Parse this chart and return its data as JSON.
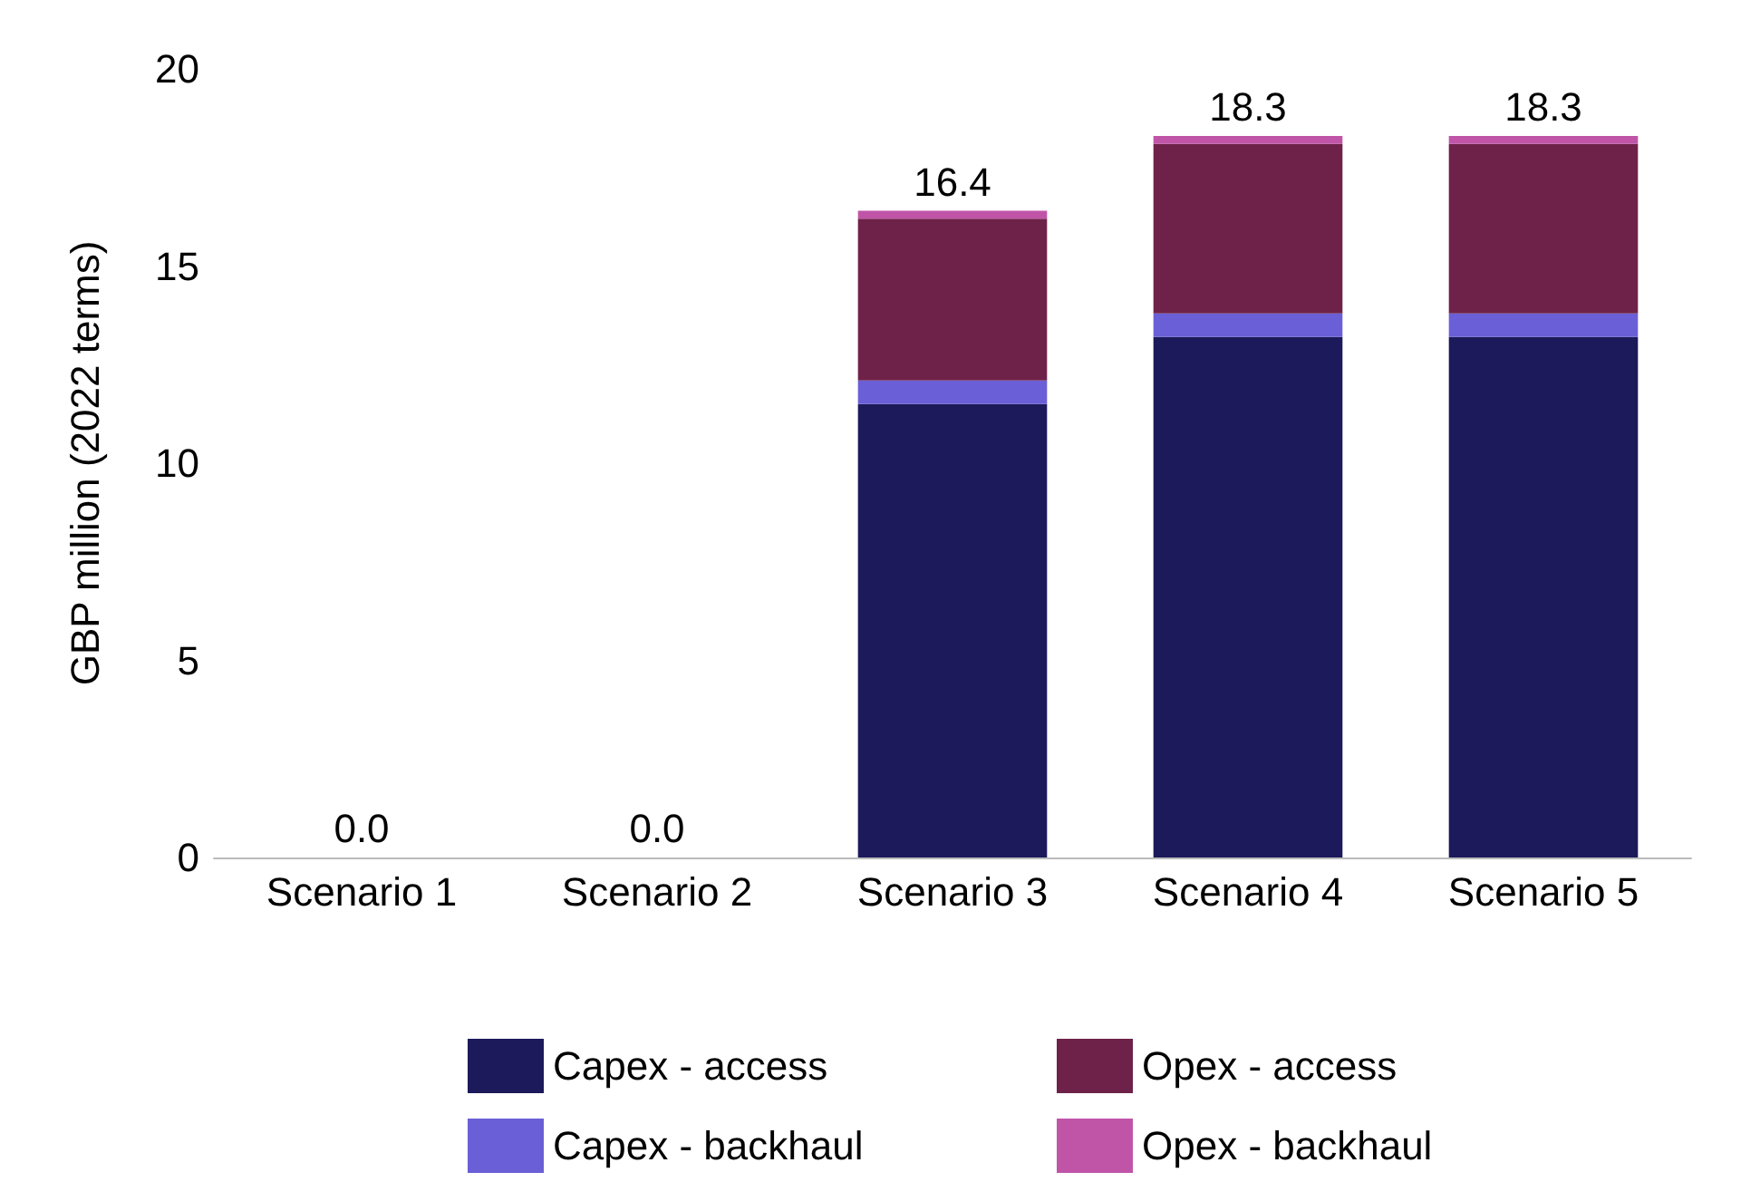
{
  "chart_data": {
    "type": "bar",
    "stacked": true,
    "ylabel": "GBP million (2022 terms)",
    "categories": [
      "Scenario 1",
      "Scenario 2",
      "Scenario 3",
      "Scenario 4",
      "Scenario 5"
    ],
    "series": [
      {
        "name": "Capex - access",
        "color": "#1c1a5a",
        "values": [
          0,
          0,
          11.5,
          13.2,
          13.2
        ]
      },
      {
        "name": "Capex - backhaul",
        "color": "#6a5fd6",
        "values": [
          0,
          0,
          0.6,
          0.6,
          0.6
        ]
      },
      {
        "name": "Opex - access",
        "color": "#6e2249",
        "values": [
          0,
          0,
          4.1,
          4.3,
          4.3
        ]
      },
      {
        "name": "Opex - backhaul",
        "color": "#c055a8",
        "values": [
          0,
          0,
          0.2,
          0.2,
          0.2
        ]
      }
    ],
    "totals": [
      "0.0",
      "0.0",
      "16.4",
      "18.3",
      "18.3"
    ],
    "ylim": [
      0,
      20
    ],
    "yticks": [
      0,
      5,
      10,
      15,
      20
    ],
    "grid": false,
    "legend": "bottom"
  }
}
